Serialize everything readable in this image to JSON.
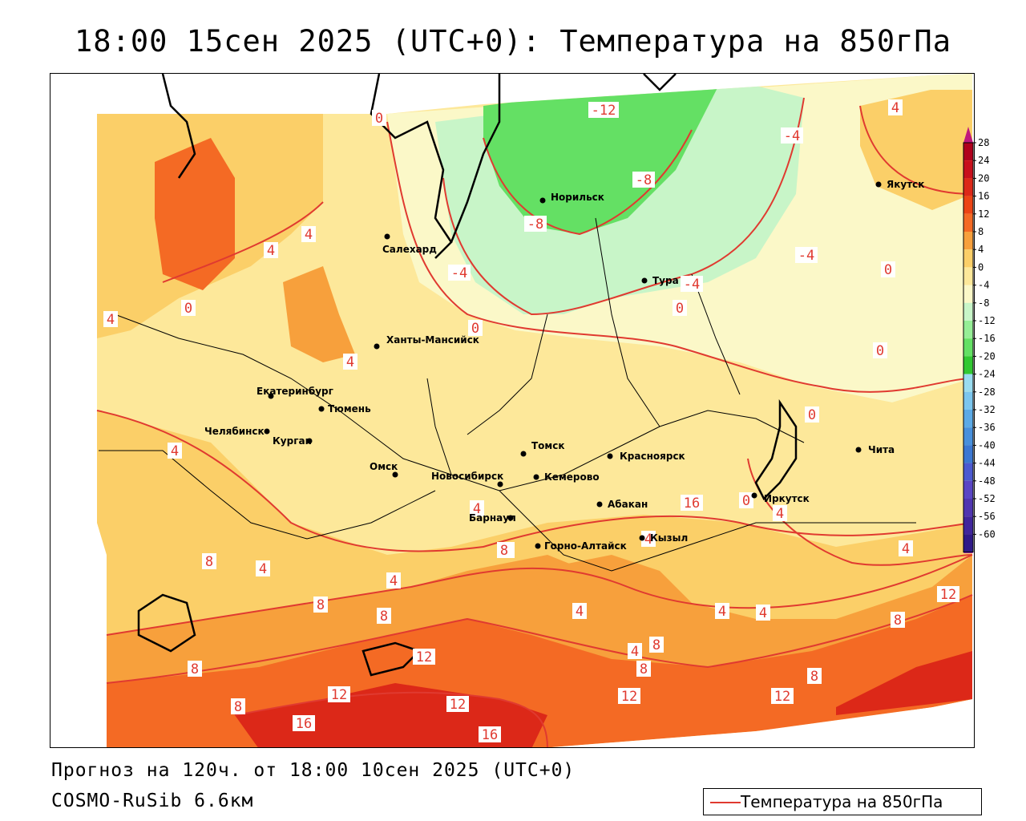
{
  "title": "18:00 15сен 2025 (UTC+0): Температура на 850гПа",
  "footer": {
    "forecast": "Прогноз на 120ч. от 18:00 10сен 2025 (UTC+0)",
    "model": "COSMO-RuSib 6.6км",
    "legend_label": "Температура на 850гПа"
  },
  "colorbar": {
    "levels": [
      {
        "value": "28",
        "color": "#b0001c"
      },
      {
        "value": "24",
        "color": "#c8101c"
      },
      {
        "value": "20",
        "color": "#dc2818"
      },
      {
        "value": "16",
        "color": "#ec4414"
      },
      {
        "value": "12",
        "color": "#f46a24"
      },
      {
        "value": "8",
        "color": "#f7a03c"
      },
      {
        "value": "4",
        "color": "#fbcf68"
      },
      {
        "value": "0",
        "color": "#fde89a"
      },
      {
        "value": "-4",
        "color": "#fbf8c8"
      },
      {
        "value": "-8",
        "color": "#c8f5c8"
      },
      {
        "value": "-12",
        "color": "#96ee96"
      },
      {
        "value": "-16",
        "color": "#64e064"
      },
      {
        "value": "-20",
        "color": "#32c832"
      },
      {
        "value": "-24",
        "color": "#9adcf0"
      },
      {
        "value": "-28",
        "color": "#7cc6ee"
      },
      {
        "value": "-32",
        "color": "#5caae6"
      },
      {
        "value": "-36",
        "color": "#4890dc"
      },
      {
        "value": "-40",
        "color": "#3c78d2"
      },
      {
        "value": "-44",
        "color": "#4c5ad0"
      },
      {
        "value": "-48",
        "color": "#5a46c4"
      },
      {
        "value": "-52",
        "color": "#5036b0"
      },
      {
        "value": "-56",
        "color": "#40269c"
      },
      {
        "value": "-60",
        "color": "#301a88"
      }
    ],
    "top_arrow_color": "#c0187c",
    "bottom_arrow_color": "#b030c8"
  },
  "cities": [
    {
      "name": "Норильск"
    },
    {
      "name": "Салехард"
    },
    {
      "name": "Тура"
    },
    {
      "name": "Якутск"
    },
    {
      "name": "Ханты-Мансийск"
    },
    {
      "name": "Екатеринбург"
    },
    {
      "name": "Тюмень"
    },
    {
      "name": "Челябинск"
    },
    {
      "name": "Курган"
    },
    {
      "name": "Омск"
    },
    {
      "name": "Новосибирск"
    },
    {
      "name": "Барнаул"
    },
    {
      "name": "Томск"
    },
    {
      "name": "Кемерово"
    },
    {
      "name": "Красноярск"
    },
    {
      "name": "Абакан"
    },
    {
      "name": "Горно-Алтайск"
    },
    {
      "name": "Кызыл"
    },
    {
      "name": "Иркутск"
    },
    {
      "name": "Чита"
    }
  ],
  "contour_labels": [
    {
      "text": "-12"
    },
    {
      "text": "-8"
    },
    {
      "text": "-8"
    },
    {
      "text": "-4"
    },
    {
      "text": "-4"
    },
    {
      "text": "-4"
    },
    {
      "text": "-4"
    },
    {
      "text": "4"
    },
    {
      "text": "0"
    },
    {
      "text": "0"
    },
    {
      "text": "0"
    },
    {
      "text": "0"
    },
    {
      "text": "0"
    },
    {
      "text": "0"
    },
    {
      "text": "0"
    },
    {
      "text": "4"
    },
    {
      "text": "4"
    },
    {
      "text": "4"
    },
    {
      "text": "4"
    },
    {
      "text": "4"
    },
    {
      "text": "4"
    },
    {
      "text": "4"
    },
    {
      "text": "4"
    },
    {
      "text": "4"
    },
    {
      "text": "4"
    },
    {
      "text": "4"
    },
    {
      "text": "4"
    },
    {
      "text": "4"
    },
    {
      "text": "4"
    },
    {
      "text": "4"
    },
    {
      "text": "4"
    },
    {
      "text": "8"
    },
    {
      "text": "8"
    },
    {
      "text": "8"
    },
    {
      "text": "8"
    },
    {
      "text": "8"
    },
    {
      "text": "8"
    },
    {
      "text": "8"
    },
    {
      "text": "8"
    },
    {
      "text": "8"
    },
    {
      "text": "8"
    },
    {
      "text": "12"
    },
    {
      "text": "12"
    },
    {
      "text": "12"
    },
    {
      "text": "12"
    },
    {
      "text": "12"
    },
    {
      "text": "12"
    },
    {
      "text": "16"
    },
    {
      "text": "16"
    },
    {
      "text": "16"
    },
    {
      "text": "0"
    },
    {
      "text": "4"
    }
  ],
  "field_colors": {
    "green_dark": "#64e064",
    "green_light": "#c8f5c8",
    "pale_yellow": "#fbf8c8",
    "yellow": "#fde89a",
    "light_orange": "#fbcf68",
    "orange": "#f7a03c",
    "dark_orange": "#f46a24",
    "red": "#ec4414",
    "deep_red": "#dc2818",
    "contour": "#e03a30"
  }
}
